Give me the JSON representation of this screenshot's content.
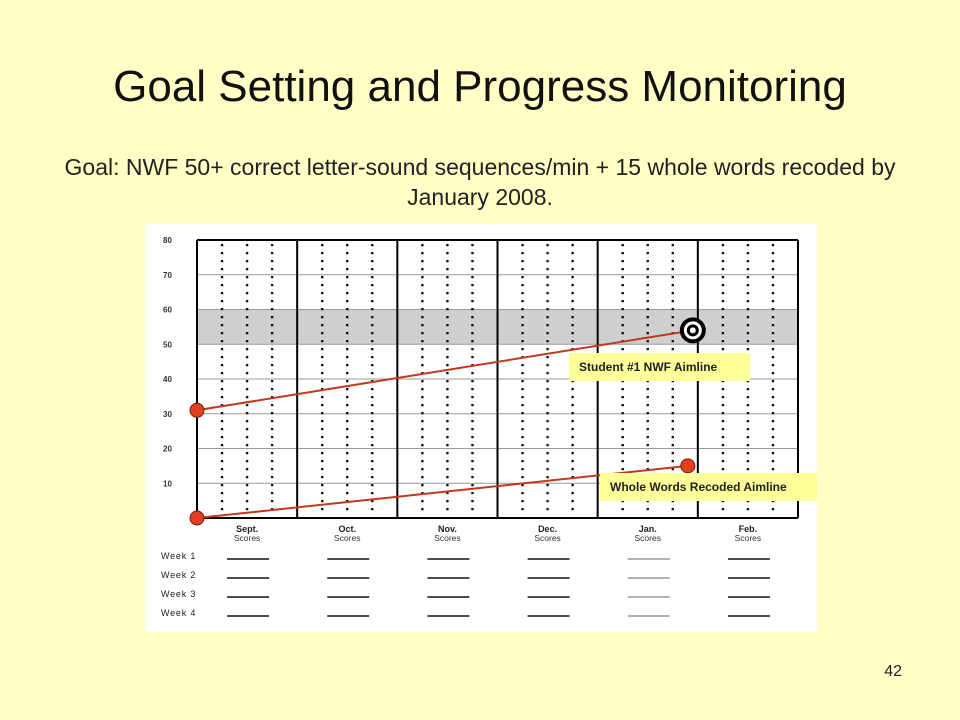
{
  "slide": {
    "title": "Goal Setting and Progress Monitoring",
    "subtitle": "Goal: NWF 50+ correct letter-sound sequences/min + 15 whole words recoded by January 2008.",
    "page_number": "42"
  },
  "chart_data": {
    "type": "line",
    "title": "",
    "xlabel": "",
    "ylabel": "",
    "ylim": [
      0,
      80
    ],
    "yticks": [
      10,
      20,
      30,
      40,
      50,
      60,
      70,
      80
    ],
    "months": [
      {
        "name": "Sept.",
        "sub": "Scores"
      },
      {
        "name": "Oct.",
        "sub": "Scores"
      },
      {
        "name": "Nov.",
        "sub": "Scores"
      },
      {
        "name": "Dec.",
        "sub": "Scores"
      },
      {
        "name": "Jan.",
        "sub": "Scores"
      },
      {
        "name": "Feb.",
        "sub": "Scores"
      }
    ],
    "weeks": [
      "Week 1",
      "Week 2",
      "Week 3",
      "Week 4"
    ],
    "goal_band": [
      50,
      60
    ],
    "goal_marker": {
      "x": 4.95,
      "y": 54
    },
    "series": [
      {
        "name": "Student #1 NWF Aimline",
        "points": [
          {
            "x": 0,
            "y": 31
          },
          {
            "x": 4.95,
            "y": 54
          }
        ]
      },
      {
        "name": "Whole Words Recoded Aimline",
        "points": [
          {
            "x": 0,
            "y": 0
          },
          {
            "x": 4.9,
            "y": 15
          }
        ]
      }
    ],
    "colors": {
      "line": "#c0391b",
      "point": "#e0401f",
      "band": "#cfcfcf",
      "callout": "#ffff99",
      "grid": "#000000"
    },
    "grid": true
  }
}
